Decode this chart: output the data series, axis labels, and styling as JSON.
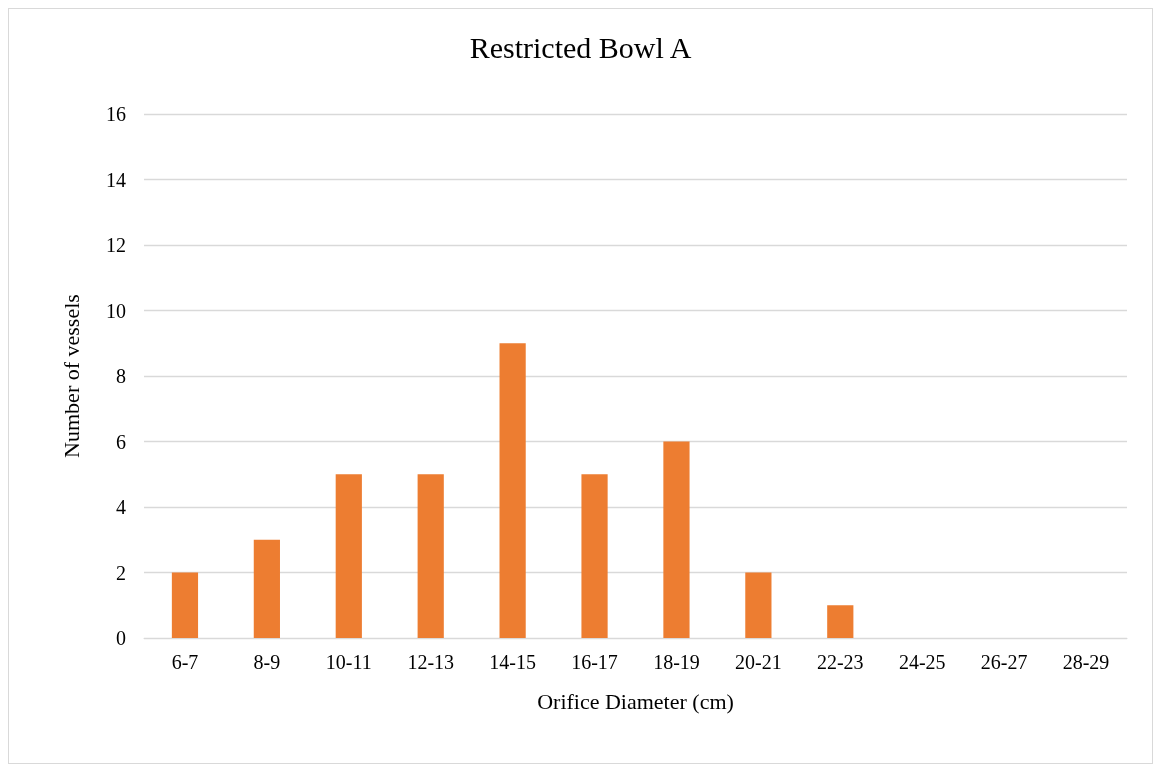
{
  "chart_data": {
    "type": "bar",
    "title": "Restricted Bowl A",
    "xlabel": "Orifice Diameter (cm)",
    "ylabel": "Number of vessels",
    "categories": [
      "6-7",
      "8-9",
      "10-11",
      "12-13",
      "14-15",
      "16-17",
      "18-19",
      "20-21",
      "22-23",
      "24-25",
      "26-27",
      "28-29"
    ],
    "values": [
      2,
      3,
      5,
      5,
      9,
      5,
      6,
      2,
      1,
      0,
      0,
      0
    ],
    "color": "#ed7d31",
    "ylim": [
      0,
      16
    ],
    "yticks": [
      0,
      2,
      4,
      6,
      8,
      10,
      12,
      14,
      16
    ],
    "grid": "y"
  }
}
